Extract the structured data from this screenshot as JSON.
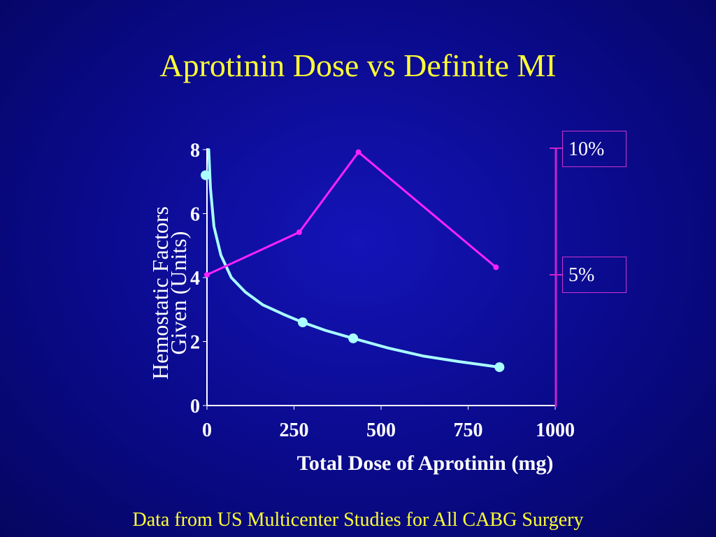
{
  "slide": {
    "title": "Aprotinin Dose vs Definite MI",
    "footnote": "Data from US Multicenter Studies for All CABG Surgery"
  },
  "colors": {
    "title": "#ffff33",
    "footnote": "#ffff33",
    "axis": "#ffffff",
    "cyan_series": "#aaffff",
    "magenta_series": "#ff22ff",
    "right_axis": "#cc22cc"
  },
  "chart_data": {
    "type": "line",
    "xlabel": "Total Dose of Aprotinin (mg)",
    "ylabel_lines": [
      "Hemostatic Factors",
      "Given (Units)"
    ],
    "xlim": [
      0,
      1000
    ],
    "ylim": [
      0,
      8
    ],
    "x_ticks": [
      "0",
      "250",
      "500",
      "750",
      "1000"
    ],
    "y_ticks": [
      "0",
      "2",
      "4",
      "6",
      "8"
    ],
    "right_axis_labels": [
      "10%",
      "5%"
    ],
    "series": [
      {
        "color": "cyan",
        "points": [
          [
            0,
            7.2
          ],
          [
            275,
            2.6
          ],
          [
            420,
            2.1
          ],
          [
            840,
            1.2
          ]
        ],
        "curve": [
          [
            5,
            8.0
          ],
          [
            10,
            6.8
          ],
          [
            20,
            5.6
          ],
          [
            40,
            4.7
          ],
          [
            70,
            4.0
          ],
          [
            110,
            3.55
          ],
          [
            160,
            3.15
          ],
          [
            220,
            2.85
          ],
          [
            275,
            2.6
          ],
          [
            340,
            2.35
          ],
          [
            420,
            2.1
          ],
          [
            520,
            1.8
          ],
          [
            620,
            1.55
          ],
          [
            720,
            1.38
          ],
          [
            840,
            1.2
          ]
        ]
      },
      {
        "color": "magenta",
        "right_axis_percent": true,
        "points": [
          [
            0,
            5.0
          ],
          [
            265,
            6.7
          ],
          [
            435,
            9.9
          ],
          [
            830,
            5.3
          ]
        ]
      }
    ]
  }
}
